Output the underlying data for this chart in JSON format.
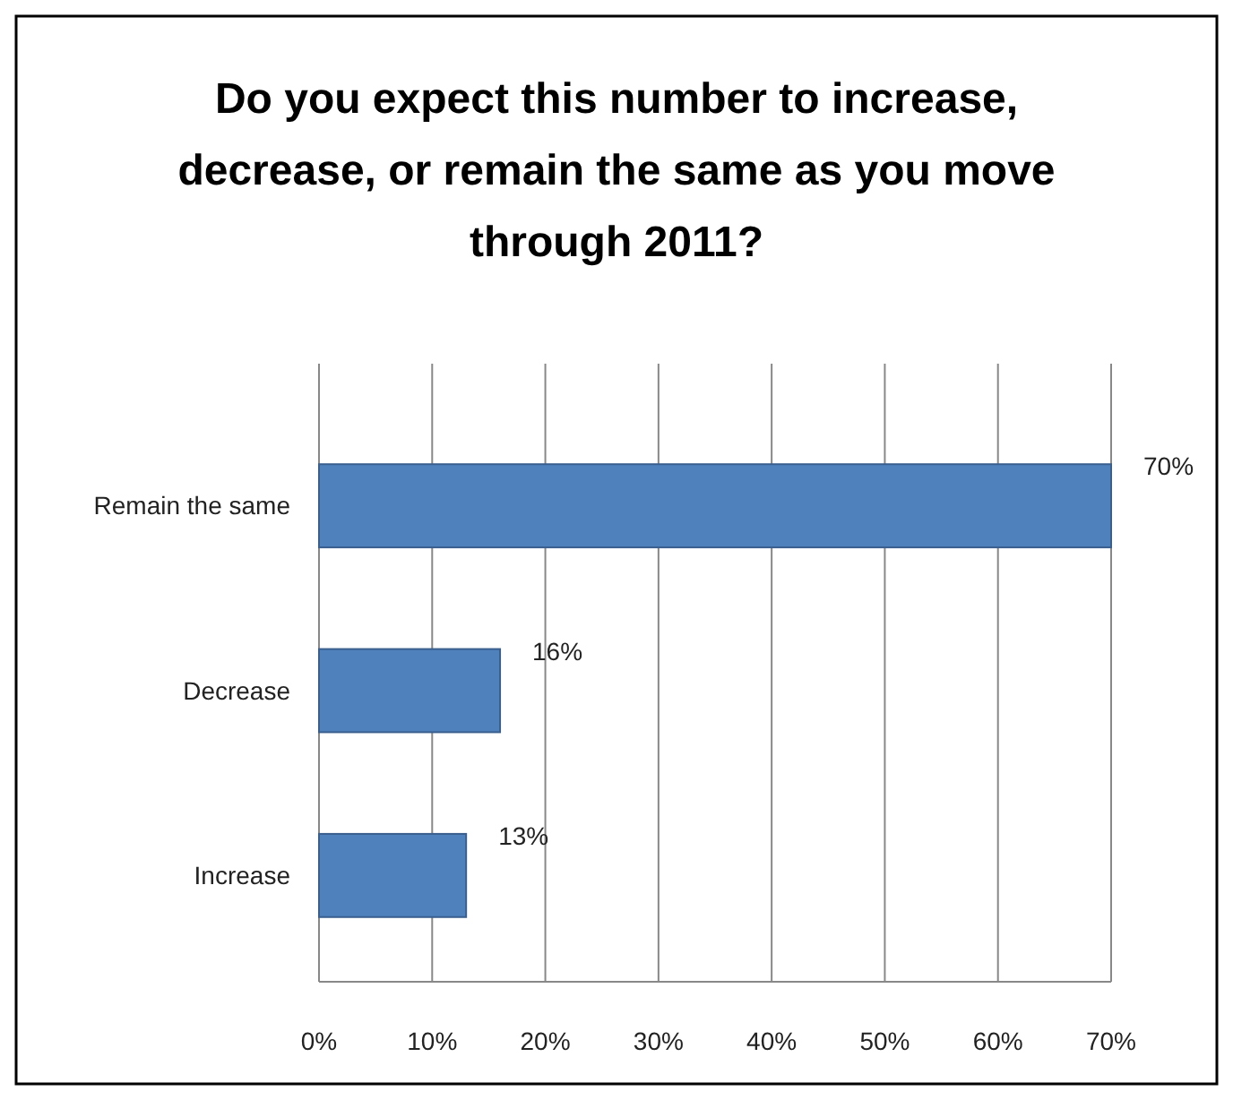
{
  "chart_data": {
    "type": "bar",
    "orientation": "horizontal",
    "title": "Do you expect this number to increase, decrease, or remain the same as you move through 2011?",
    "categories": [
      "Remain the same",
      "Decrease",
      "Increase"
    ],
    "values": [
      70,
      16,
      13
    ],
    "value_labels": [
      "70%",
      "16%",
      "13%"
    ],
    "color": "#4f81bd",
    "xlim": [
      0,
      70
    ],
    "xticks": [
      {
        "value": 0,
        "label": "0%"
      },
      {
        "value": 10,
        "label": "10%"
      },
      {
        "value": 20,
        "label": "20%"
      },
      {
        "value": 30,
        "label": "30%"
      },
      {
        "value": 40,
        "label": "40%"
      },
      {
        "value": 50,
        "label": "50%"
      },
      {
        "value": 60,
        "label": "60%"
      },
      {
        "value": 70,
        "label": "70%"
      }
    ],
    "grid": "x"
  }
}
